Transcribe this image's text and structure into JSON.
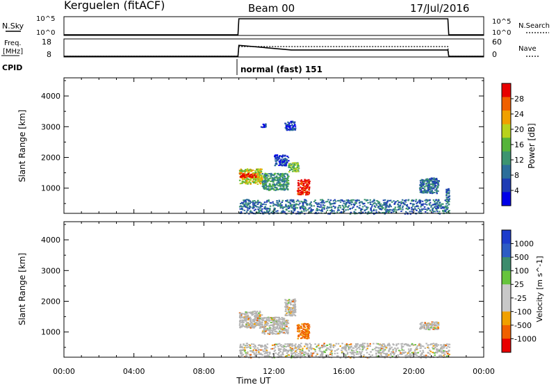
{
  "header": {
    "station": "Kerguelen (fitACF)",
    "beam": "Beam 00",
    "date": "17/Jul/2016"
  },
  "aux_panels": {
    "nsky": {
      "left_label": "N.Sky",
      "left_ticks": [
        "10^5",
        "10^0"
      ],
      "right_ticks": [
        "10^5",
        "10^0"
      ],
      "right_label": "N.Search"
    },
    "freq": {
      "left_label_1": "Freq.",
      "left_label_2": "[MHz]",
      "left_ticks": [
        "18",
        "8"
      ],
      "right_ticks": [
        "60",
        "0"
      ],
      "right_label": "Nave"
    },
    "cpid": {
      "label": "CPID",
      "mode_text": "normal (fast) 151"
    }
  },
  "colors": {
    "power_scale": [
      "#0000e8",
      "#1e3cb4",
      "#2c6e9a",
      "#3c9470",
      "#55b43a",
      "#b8d21c",
      "#f0a000",
      "#f06000",
      "#e80000"
    ],
    "velocity_scale": [
      "#1c3ccc",
      "#2c5cc4",
      "#3c8c6c",
      "#66c43c",
      "#c8c8c8",
      "#c8c8c8",
      "#f0a000",
      "#f06000",
      "#e80000"
    ],
    "ground_scatter": "#b4b4b4"
  },
  "chart_data": [
    {
      "type": "line",
      "name": "N.Sky / N.Search",
      "x": [
        "00:00",
        "09:57",
        "10:00",
        "21:57",
        "22:00",
        "24:00"
      ],
      "y_nsky_log10": [
        0,
        0,
        4.6,
        4.6,
        0,
        0
      ],
      "ylim": [
        0,
        5
      ]
    },
    {
      "type": "line",
      "name": "Freq / Nave",
      "x": [
        "00:00",
        "09:57",
        "10:00",
        "13:00",
        "21:57",
        "22:00",
        "24:00"
      ],
      "freq_mhz": [
        8,
        8,
        14.6,
        11.8,
        11.8,
        8,
        8
      ],
      "nave": [
        0,
        0,
        35,
        35,
        35,
        0,
        0
      ],
      "freq_ylim": [
        8,
        18
      ],
      "nave_ylim": [
        0,
        60
      ]
    },
    {
      "type": "heatmap",
      "title": "Power",
      "xlabel": "",
      "ylabel": "Slant Range [km]",
      "xlim": [
        "00:00",
        "24:00"
      ],
      "ylim": [
        180,
        4590
      ],
      "yticks": [
        1000,
        2000,
        3000,
        4000
      ],
      "colorbar_label": "Power [dB]",
      "colorbar_ticks": [
        "28",
        "24",
        "20",
        "16",
        "12",
        "8",
        "4"
      ],
      "colorbar_range": [
        0,
        30
      ],
      "echo_regions": [
        {
          "t0": 10.0,
          "t1": 11.3,
          "r0": 1150,
          "r1": 1650,
          "level": 5
        },
        {
          "t0": 10.0,
          "t1": 11.0,
          "r0": 1350,
          "r1": 1500,
          "level": 8
        },
        {
          "t0": 11.3,
          "t1": 12.8,
          "r0": 950,
          "r1": 1500,
          "level": 3
        },
        {
          "t0": 12.8,
          "t1": 13.4,
          "r0": 1550,
          "r1": 1850,
          "level": 4
        },
        {
          "t0": 12.0,
          "t1": 12.8,
          "r0": 1750,
          "r1": 2100,
          "level": 1
        },
        {
          "t0": 13.3,
          "t1": 14.0,
          "r0": 800,
          "r1": 1300,
          "level": 8
        },
        {
          "t0": 12.6,
          "t1": 13.2,
          "r0": 2900,
          "r1": 3200,
          "level": 1
        },
        {
          "t0": 11.2,
          "t1": 11.5,
          "r0": 3000,
          "r1": 3120,
          "level": 1
        },
        {
          "t0": 20.3,
          "t1": 21.4,
          "r0": 850,
          "r1": 1350,
          "level": 2
        },
        {
          "t0": 21.8,
          "t1": 22.0,
          "r0": 500,
          "r1": 1000,
          "level": 2
        },
        {
          "t0": 10.0,
          "t1": 22.0,
          "r0": 180,
          "r1": 650,
          "level": 2,
          "sparse": true
        }
      ]
    },
    {
      "type": "heatmap",
      "title": "Velocity",
      "xlabel": "Time UT",
      "ylabel": "Slant Range [km]",
      "xlim": [
        "00:00",
        "24:00"
      ],
      "ylim": [
        180,
        4590
      ],
      "xticks": [
        "00:00",
        "04:00",
        "08:00",
        "12:00",
        "16:00",
        "20:00",
        "00:00"
      ],
      "yticks": [
        1000,
        2000,
        3000,
        4000
      ],
      "colorbar_label": "Velocity [m s^-1]",
      "colorbar_ticks": [
        "1000",
        "500",
        "100",
        "25",
        "-25",
        "-100",
        "-500",
        "-1000"
      ],
      "echo_regions": [
        {
          "t0": 10.0,
          "t1": 11.3,
          "r0": 1150,
          "r1": 1700,
          "level": "ground"
        },
        {
          "t0": 11.3,
          "t1": 12.8,
          "r0": 950,
          "r1": 1500,
          "level": "ground"
        },
        {
          "t0": 13.3,
          "t1": 14.0,
          "r0": 800,
          "r1": 1300,
          "level": -200
        },
        {
          "t0": 12.6,
          "t1": 13.2,
          "r0": 1550,
          "r1": 2100,
          "level": "ground"
        },
        {
          "t0": 20.3,
          "t1": 21.4,
          "r0": 1100,
          "r1": 1350,
          "level": "ground"
        },
        {
          "t0": 10.0,
          "t1": 22.0,
          "r0": 180,
          "r1": 650,
          "level": "ground",
          "sparse": true
        }
      ]
    }
  ]
}
